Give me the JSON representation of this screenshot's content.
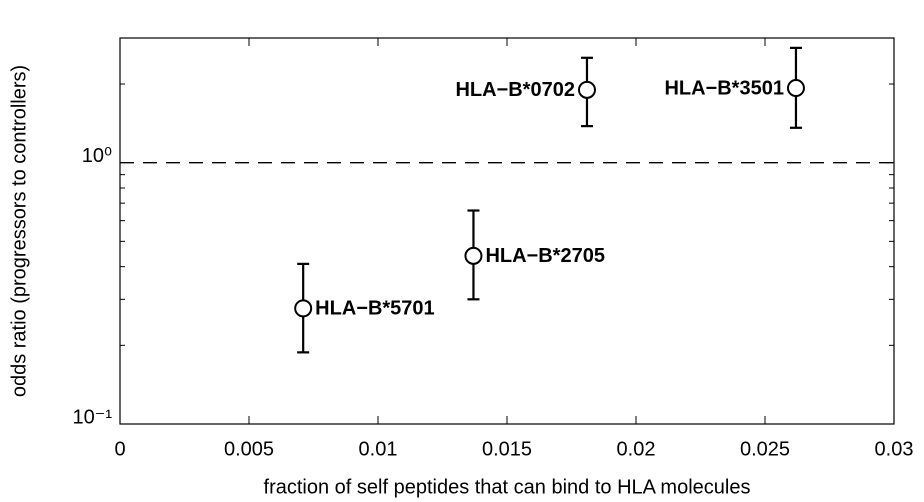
{
  "chart_data": {
    "type": "scatter",
    "x_label": "fraction of self peptides that can bind to HLA molecules",
    "y_label": "odds ratio (progressors to controllers)",
    "x": [
      0.0071,
      0.0137,
      0.0181,
      0.0262
    ],
    "values": [
      0.277,
      0.44,
      1.9,
      1.93
    ],
    "lower": [
      0.188,
      0.3,
      1.38,
      1.36
    ],
    "upper": [
      0.41,
      0.656,
      2.52,
      2.75
    ],
    "point_labels": [
      "HLA−B*5701",
      "HLA−B*2705",
      "HLA−B*0702",
      "HLA−B*3501"
    ],
    "color": "#000000",
    "xlim": [
      0,
      0.03
    ],
    "xticks": [
      0,
      0.005,
      0.01,
      0.015,
      0.02,
      0.025,
      0.03
    ],
    "ylim": [
      0.1,
      3
    ],
    "ylog": true,
    "yticks": [
      {
        "value": 0.1,
        "label": "10⁻¹"
      },
      {
        "value": 1,
        "label": "10⁰"
      }
    ],
    "y_minor_ticks": [
      0.2,
      0.3,
      0.4,
      0.5,
      0.6,
      0.7,
      0.8,
      0.9,
      2
    ],
    "reference_line": 1,
    "grid": false
  }
}
